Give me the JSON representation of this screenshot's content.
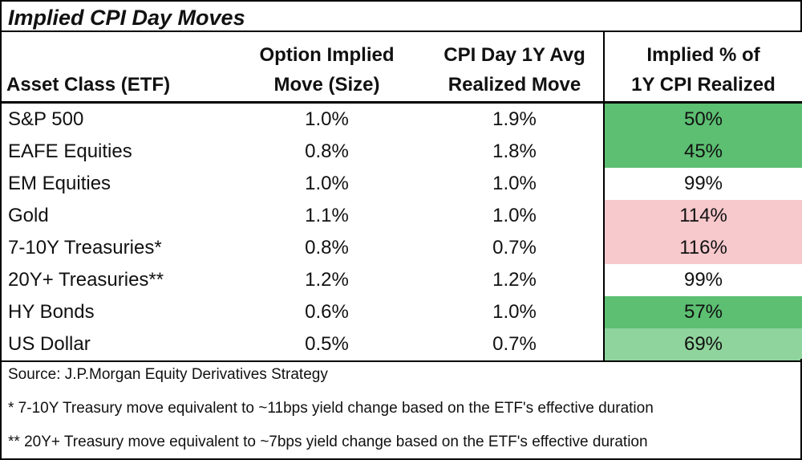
{
  "header": {
    "title": "Implied CPI Day Moves"
  },
  "table": {
    "columns": [
      [
        "Asset Class (ETF)"
      ],
      [
        "Option Implied",
        "Move (Size)"
      ],
      [
        "CPI Day 1Y Avg",
        "Realized Move"
      ],
      [
        "Implied % of",
        "1Y CPI Realized"
      ]
    ],
    "rows": [
      [
        "S&P 500",
        "1.0%",
        "1.9%",
        "50%"
      ],
      [
        "EAFE Equities",
        "0.8%",
        "1.8%",
        "45%"
      ],
      [
        "EM Equities",
        "1.0%",
        "1.0%",
        "99%"
      ],
      [
        "Gold",
        "1.1%",
        "1.0%",
        "114%"
      ],
      [
        "7-10Y Treasuries*",
        "0.8%",
        "0.7%",
        "116%"
      ],
      [
        "20Y+ Treasuries**",
        "1.2%",
        "1.2%",
        "99%"
      ],
      [
        "HY Bonds",
        "0.6%",
        "1.0%",
        "57%"
      ],
      [
        "US Dollar",
        "0.5%",
        "0.7%",
        "69%"
      ]
    ],
    "highlight_colors": [
      "#5cbf72",
      "#5cbf72",
      "#ffffff",
      "#f7c9cc",
      "#f7c9cc",
      "#ffffff",
      "#5cbf72",
      "#8fd49c"
    ]
  },
  "notes": [
    "Source: J.P.Morgan Equity Derivatives Strategy",
    "* 7-10Y Treasury move equivalent to ~11bps yield change based on the ETF's effective duration",
    "** 20Y+ Treasury move equivalent to ~7bps yield change based on the ETF's effective duration"
  ]
}
